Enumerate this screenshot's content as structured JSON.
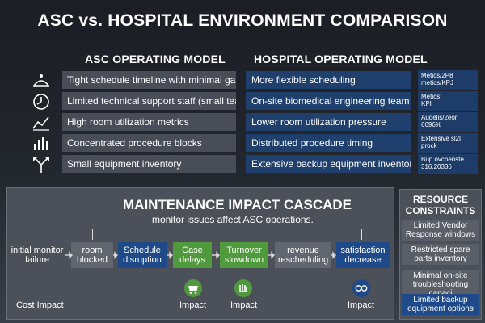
{
  "title": "ASC vs. HOSPITAL ENVIRONMENT COMPARISON",
  "asc_heading": "ASC OPERATING MODEL",
  "hospital_heading": "HOSPITAL OPERATING MODEL",
  "rows": [
    {
      "icon": "scale-icon",
      "asc": "Tight schedule timeline with minimal gaps",
      "hospital": "More flexible scheduling",
      "metric_lines": [
        "Metics/2P8",
        "metics/KPJ"
      ]
    },
    {
      "icon": "clock-icon",
      "asc": "Limited technical support staff (small team)",
      "hospital": "On-site biomedical engineering team",
      "metric_lines": [
        "Metics:",
        "KPI"
      ]
    },
    {
      "icon": "trend-line-icon",
      "asc": "High room utilization metrics",
      "hospital": "Lower room utilization pressure",
      "metric_lines": [
        "Audelis/2eor",
        "6696%"
      ]
    },
    {
      "icon": "bar-chart-icon",
      "asc": "Concentrated procedure blocks",
      "hospital": "Distributed procedure timing",
      "metric_lines": [
        "Extensive sl2l",
        "prock"
      ]
    },
    {
      "icon": "split-arrows-icon",
      "asc": "Small equipment inventory",
      "hospital": "Extensive backup equipment inventory",
      "metric_lines": [
        "Bup ovchenste",
        "316.20336"
      ]
    }
  ],
  "cascade": {
    "title": "MAINTENANCE IMPACT CASCADE",
    "subtitle": "monitor issues affect ASC operations.",
    "nodes": [
      {
        "lines": [
          "initial monitor",
          "failure"
        ],
        "style": "plain"
      },
      {
        "lines": [
          "room",
          "blocked"
        ],
        "style": "gray"
      },
      {
        "lines": [
          "Schedule",
          "disruption"
        ],
        "style": "blue"
      },
      {
        "lines": [
          "Case",
          "delays"
        ],
        "style": "green"
      },
      {
        "lines": [
          "Turnover",
          "slowdown"
        ],
        "style": "green"
      },
      {
        "lines": [
          "revenue",
          "rescheduling"
        ],
        "style": "gray"
      },
      {
        "lines": [
          "satisfaction",
          "decrease"
        ],
        "style": "blue"
      }
    ],
    "impacts": [
      {
        "label": "Cost Impact",
        "icon": ""
      },
      {
        "label": "Impact",
        "icon": "cart-icon"
      },
      {
        "label": "Impact",
        "icon": "hand-icon"
      },
      {
        "label": "Impact",
        "icon": "glasses-icon"
      }
    ]
  },
  "resources": {
    "title_lines": [
      "RESOURCE",
      "CONSTRAINTS"
    ],
    "items": [
      {
        "lines": [
          "Limited Vendor",
          "Response windows"
        ],
        "style": "gray"
      },
      {
        "lines": [
          "Restricted spare",
          "parts inventory"
        ],
        "style": "gray"
      },
      {
        "lines": [
          "Minimal on-site",
          "troubleshooting capaci"
        ],
        "style": "gray"
      },
      {
        "lines": [
          "Limited backup",
          "equipment options"
        ],
        "style": "blue"
      }
    ]
  },
  "colors": {
    "asc_cell": "#484d57",
    "hospital_cell": "#1f3f6d",
    "node_gray": "#62666e",
    "node_blue": "#1f4a8a",
    "node_green": "#4f9a3d"
  }
}
